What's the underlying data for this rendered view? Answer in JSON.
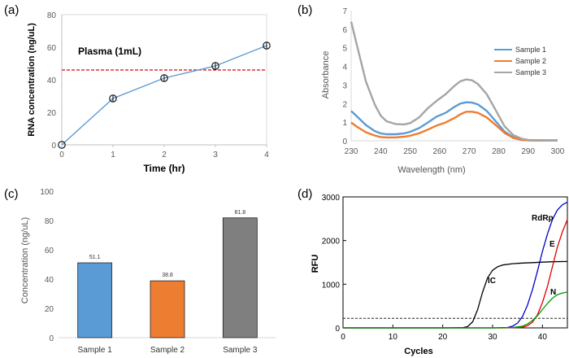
{
  "figure": {
    "panels": [
      {
        "label": "(a)",
        "chart_index": 0
      },
      {
        "label": "(b)",
        "chart_index": 1
      },
      {
        "label": "(c)",
        "chart_index": 2
      },
      {
        "label": "(d)",
        "chart_index": 3
      }
    ]
  },
  "chart_data": [
    {
      "panel": "(a)",
      "type": "line",
      "title": "",
      "annotation": "Plasma (1mL)",
      "xlabel": "Time (hr)",
      "ylabel": "RNA concentration (ng/uL)",
      "xlim": [
        0,
        4
      ],
      "ylim": [
        0,
        80
      ],
      "xticks": [
        0,
        1,
        2,
        3,
        4
      ],
      "yticks": [
        0,
        20,
        40,
        60,
        80
      ],
      "grid": false,
      "series": [
        {
          "name": "RNA concentration",
          "color": "#5b9bd5",
          "x": [
            0,
            1,
            2,
            3,
            4
          ],
          "y": [
            0,
            28.5,
            41,
            48.5,
            61
          ],
          "error": [
            0,
            1.7,
            1.7,
            1.7,
            1.7
          ]
        }
      ],
      "reference_line": {
        "y": 46,
        "color": "#e00000",
        "style": "dashed"
      }
    },
    {
      "panel": "(b)",
      "type": "line",
      "xlabel": "Wavelength (nm)",
      "ylabel": "Absorbance",
      "xlim": [
        230,
        300
      ],
      "ylim": [
        0,
        7
      ],
      "xticks": [
        230,
        240,
        250,
        260,
        270,
        280,
        290,
        300
      ],
      "yticks": [
        0,
        1,
        2,
        3,
        4,
        5,
        6,
        7
      ],
      "legend": "top-right",
      "grid": false,
      "series": [
        {
          "name": "Sample 1",
          "color": "#5b9bd5",
          "x": [
            230,
            232,
            235,
            238,
            240,
            242,
            245,
            248,
            250,
            253,
            256,
            259,
            262,
            265,
            267,
            269,
            271,
            273,
            276,
            279,
            282,
            285,
            288,
            290,
            293,
            296,
            300
          ],
          "y": [
            1.6,
            1.3,
            0.85,
            0.52,
            0.4,
            0.35,
            0.35,
            0.4,
            0.48,
            0.68,
            0.98,
            1.3,
            1.5,
            1.82,
            2.0,
            2.07,
            2.05,
            1.95,
            1.6,
            1.05,
            0.5,
            0.18,
            0.06,
            0.03,
            0.02,
            0.02,
            0.02
          ]
        },
        {
          "name": "Sample 2",
          "color": "#ed7d31",
          "x": [
            230,
            232,
            235,
            238,
            240,
            242,
            245,
            248,
            250,
            253,
            256,
            259,
            262,
            265,
            267,
            269,
            271,
            273,
            276,
            279,
            282,
            285,
            288,
            290,
            293,
            296,
            300
          ],
          "y": [
            0.98,
            0.75,
            0.46,
            0.28,
            0.2,
            0.18,
            0.18,
            0.22,
            0.27,
            0.4,
            0.6,
            0.82,
            0.98,
            1.22,
            1.42,
            1.56,
            1.56,
            1.5,
            1.25,
            0.85,
            0.42,
            0.15,
            0.04,
            0.02,
            0.01,
            0.01,
            0.01
          ]
        },
        {
          "name": "Sample 3",
          "color": "#a5a5a5",
          "x": [
            230,
            232,
            235,
            238,
            240,
            242,
            245,
            248,
            250,
            253,
            256,
            259,
            262,
            265,
            267,
            269,
            271,
            273,
            276,
            279,
            282,
            285,
            288,
            290,
            293,
            296,
            300
          ],
          "y": [
            6.4,
            5.1,
            3.2,
            1.95,
            1.35,
            1.05,
            0.9,
            0.88,
            0.95,
            1.25,
            1.75,
            2.15,
            2.5,
            2.95,
            3.2,
            3.3,
            3.25,
            3.05,
            2.5,
            1.65,
            0.78,
            0.3,
            0.1,
            0.05,
            0.03,
            0.02,
            0.02
          ]
        }
      ]
    },
    {
      "panel": "(c)",
      "type": "bar",
      "xlabel": "",
      "ylabel": "Concentration (ng/uL)",
      "ylim": [
        0,
        100
      ],
      "yticks": [
        0,
        20,
        40,
        60,
        80,
        100
      ],
      "grid": false,
      "categories": [
        "Sample 1",
        "Sample 2",
        "Sample 3"
      ],
      "values": [
        51.1,
        38.8,
        81.8
      ],
      "data_labels": [
        "51.1",
        "38.8",
        "81.8"
      ],
      "colors": [
        "#5b9bd5",
        "#ed7d31",
        "#7f7f7f"
      ]
    },
    {
      "panel": "(d)",
      "type": "line",
      "xlabel": "Cycles",
      "ylabel": "RFU",
      "xlim": [
        0,
        45
      ],
      "ylim": [
        0,
        3000
      ],
      "xticks": [
        0,
        10,
        20,
        30,
        40
      ],
      "yticks": [
        0,
        1000,
        2000,
        3000
      ],
      "grid": false,
      "threshold": {
        "y": 220,
        "style": "dashed"
      },
      "series": [
        {
          "name": "IC",
          "color": "#000000",
          "x": [
            0,
            20,
            24,
            25,
            26,
            27,
            28,
            29,
            30,
            31,
            32,
            34,
            36,
            38,
            40,
            42,
            45
          ],
          "y": [
            0,
            0,
            5,
            30,
            140,
            420,
            820,
            1150,
            1320,
            1400,
            1440,
            1470,
            1485,
            1495,
            1505,
            1515,
            1520
          ]
        },
        {
          "name": "RdRp",
          "color": "#0000cc",
          "x": [
            0,
            30,
            33,
            34,
            35,
            36,
            37,
            38,
            39,
            40,
            41,
            42,
            43,
            44,
            45
          ],
          "y": [
            0,
            0,
            10,
            40,
            110,
            260,
            520,
            880,
            1300,
            1750,
            2150,
            2480,
            2700,
            2820,
            2880
          ]
        },
        {
          "name": "E",
          "color": "#dd0000",
          "x": [
            0,
            33,
            36,
            37,
            38,
            39,
            40,
            41,
            42,
            43,
            44,
            45
          ],
          "y": [
            0,
            0,
            15,
            50,
            130,
            300,
            580,
            950,
            1400,
            1850,
            2200,
            2480
          ]
        },
        {
          "name": "N",
          "color": "#009900",
          "x": [
            0,
            32,
            34,
            36,
            37,
            38,
            39,
            40,
            41,
            42,
            43,
            44,
            45
          ],
          "y": [
            0,
            0,
            10,
            40,
            90,
            170,
            280,
            420,
            560,
            680,
            760,
            800,
            820
          ]
        }
      ]
    }
  ]
}
